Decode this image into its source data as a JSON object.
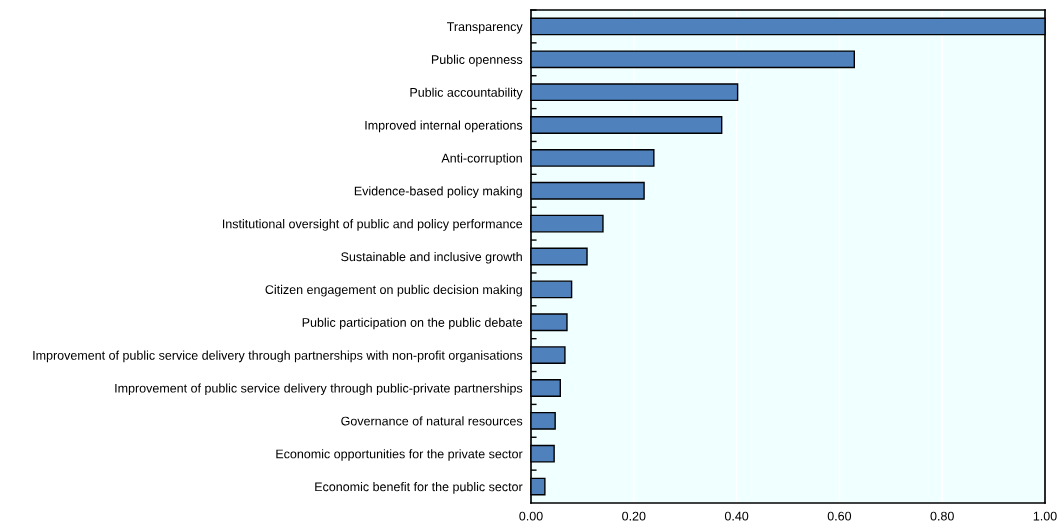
{
  "chart_data": {
    "type": "bar",
    "orientation": "horizontal",
    "categories": [
      "Transparency",
      "Public openness",
      "Public accountability",
      "Improved internal operations",
      "Anti-corruption",
      "Evidence-based policy making",
      "Institutional oversight of public and policy performance",
      "Sustainable and inclusive growth",
      "Citizen engagement on public decision making",
      "Public participation on the public debate",
      "Improvement of public service delivery through partnerships with non-profit organisations",
      "Improvement of public service delivery through public-private partnerships",
      "Governance of natural resources",
      "Economic opportunities for the private sector",
      "Economic benefit for the public sector"
    ],
    "values": [
      1.0,
      0.629,
      0.402,
      0.371,
      0.239,
      0.22,
      0.14,
      0.109,
      0.079,
      0.07,
      0.066,
      0.057,
      0.047,
      0.045,
      0.027
    ],
    "color": "#4f81bd",
    "xlim": [
      0,
      1
    ],
    "xticks": [
      {
        "value": 0,
        "label": "0.00"
      },
      {
        "value": 0.2,
        "label": "0.20"
      },
      {
        "value": 0.4,
        "label": "0.40"
      },
      {
        "value": 0.6,
        "label": "0.60"
      },
      {
        "value": 0.8,
        "label": "0.80"
      },
      {
        "value": 1,
        "label": "1.00"
      }
    ],
    "grid": "x"
  }
}
